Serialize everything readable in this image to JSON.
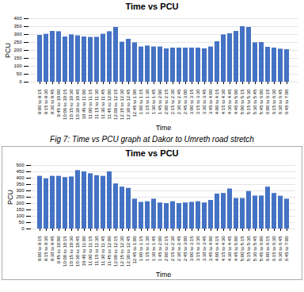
{
  "chart_data": [
    {
      "type": "bar",
      "title": "Time vs PCU",
      "xlabel": "Time",
      "ylabel": "PCU",
      "caption": "Fig 7: Time vs PCU graph at Dakor to Umreth road stretch",
      "categories": [
        "9:00 to 9:15",
        "9:15 to 9:30",
        "9:30 to 9:45",
        "9:45 to 10:00",
        "10:00 to 10:15",
        "10:15 to 10:30",
        "10:30 to 10:45",
        "10:45 to 11:00",
        "11:00 to 11:15",
        "11:15 to 11:30",
        "11:30 to 11:45",
        "11:45 to 12:00",
        "12:00 to 12:15",
        "12:15 to 12:30",
        "12:30 to 12:45",
        "12:45 to 1:00",
        "1:00 to 1:15",
        "1:15 to 1:30",
        "1:30 to 1:45",
        "1:45 to 2:00",
        "2:00 to 2:15",
        "2:15 to 2:30",
        "2:30 to 2:45",
        "2:45 to 3:00",
        "3:00 to 3:15",
        "3:15 to 3:30",
        "3:30 to 3:45",
        "3:45 to 4:00",
        "4:00 to 4:15",
        "4:15 to 4:30",
        "4:30 to 4:45",
        "4:45 to 5:00",
        "5:00 to 5:15",
        "5:15 to 5:30",
        "5:30 to 5:45",
        "5:45 to 6:00",
        "6:00 to 6:15",
        "6:15 to 6:30",
        "6:30 to 6:45",
        "6:45 to 7:00"
      ],
      "values": [
        295,
        302,
        320,
        318,
        285,
        298,
        292,
        285,
        282,
        283,
        302,
        318,
        345,
        252,
        270,
        248,
        222,
        228,
        222,
        222,
        210,
        215,
        215,
        215,
        215,
        215,
        210,
        222,
        255,
        298,
        305,
        320,
        350,
        345,
        248,
        250,
        220,
        215,
        208,
        205
      ],
      "color": "#4472C4",
      "ylim": [
        0,
        400
      ],
      "yticks": [
        0,
        50,
        100,
        150,
        200,
        250,
        300,
        350,
        400
      ],
      "grid": true
    },
    {
      "type": "bar",
      "title": "Time vs PCU",
      "xlabel": "Time",
      "ylabel": "PCU",
      "categories": [
        "9:00 to 9:15",
        "9:15 to 9:30",
        "9:30 to 9:45",
        "9:45 to 10:00",
        "10:00 to 10:15",
        "10:15 to 10:30",
        "10:30 to 10:45",
        "10:45 to 11:00",
        "11:00 to 11:15",
        "11:15 to 11:30",
        "11:30 to 11:45",
        "11:45 to 12:00",
        "12:00 to 12:15",
        "12:15 to 12:30",
        "12:30 to 12:45",
        "12:45 to 1:00",
        "1:00 to 1:15",
        "1:15 to 1:30",
        "1:30 to 1:45",
        "1:45 to 2:00",
        "2:00 to 2:15",
        "2:15 to 2:30",
        "2:30 to 2:45",
        "2:45 to 3:00",
        "3:00 to 3:15",
        "3:15 to 3:30",
        "3:30 to 3:45",
        "3:45 to 4:00",
        "4:00 to 4:15",
        "4:15 to 4:30",
        "4:30 to 4:45",
        "4:45 to 5:00",
        "5:00 to 5:15",
        "5:15 to 5:30",
        "5:30 to 5:45",
        "5:45 to 6:00",
        "6:00 to 6:15",
        "6:15 to 6:30",
        "6:30 to 6:45",
        "6:45 to 7:00"
      ],
      "values": [
        415,
        395,
        415,
        415,
        405,
        410,
        460,
        450,
        435,
        420,
        415,
        450,
        355,
        330,
        320,
        235,
        210,
        215,
        235,
        205,
        200,
        215,
        200,
        205,
        210,
        215,
        205,
        225,
        275,
        280,
        315,
        240,
        240,
        295,
        260,
        260,
        330,
        280,
        258,
        235
      ],
      "color": "#4472C4",
      "ylim": [
        0,
        500
      ],
      "yticks": [
        0,
        50,
        100,
        150,
        200,
        250,
        300,
        350,
        400,
        450,
        500
      ],
      "grid": true
    }
  ]
}
